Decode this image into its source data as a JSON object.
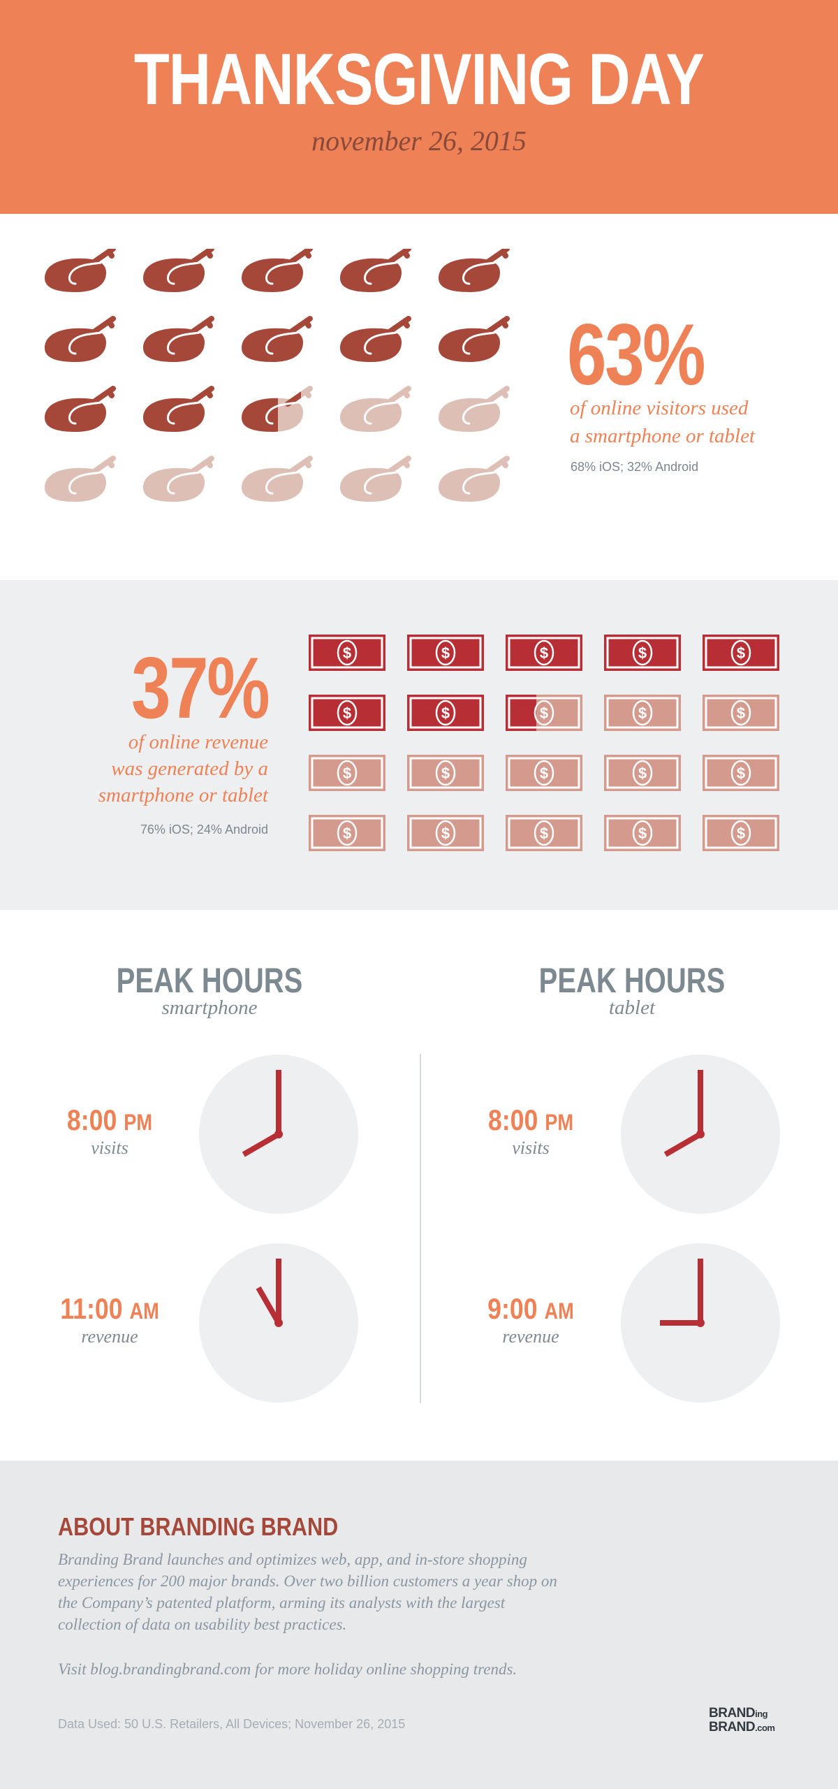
{
  "header": {
    "title": "THANKSGIVING DAY",
    "date": "november 26, 2015"
  },
  "visitors": {
    "percent": "63%",
    "description_line1": "of online visitors used",
    "description_line2": "a smartphone or tablet",
    "split": "68% iOS; 32% Android",
    "icon": "turkey-icon",
    "filled_fraction": 0.63,
    "colors": {
      "filled": "#a5483a",
      "empty": "#ddbfb5"
    }
  },
  "revenue": {
    "percent": "37%",
    "description_line1": "of online revenue",
    "description_line2": "was generated by a",
    "description_line3": "smartphone or tablet",
    "split": "76% iOS; 24% Android",
    "icon": "dollar-bill-icon",
    "filled_fraction": 0.37,
    "colors": {
      "filled": "#b72e35",
      "empty": "#d39a8d"
    }
  },
  "peak_hours": [
    {
      "title": "PEAK HOURS",
      "device": "smartphone",
      "entries": [
        {
          "time": "8:00",
          "ampm": "PM",
          "label": "visits",
          "hour": 8,
          "minute": 0
        },
        {
          "time": "11:00",
          "ampm": "AM",
          "label": "revenue",
          "hour": 11,
          "minute": 0
        }
      ]
    },
    {
      "title": "PEAK HOURS",
      "device": "tablet",
      "entries": [
        {
          "time": "8:00",
          "ampm": "PM",
          "label": "visits",
          "hour": 8,
          "minute": 0
        },
        {
          "time": "9:00",
          "ampm": "AM",
          "label": "revenue",
          "hour": 9,
          "minute": 0
        }
      ]
    }
  ],
  "about": {
    "title": "ABOUT BRANDING BRAND",
    "body_lines": [
      "Branding Brand launches and optimizes web, app, and in-store shopping",
      "experiences for 200 major brands. Over two billion customers a year shop on",
      "the Company’s patented platform, arming its analysts with the largest",
      "collection of data on usability best practices."
    ],
    "visit": "Visit blog.brandingbrand.com for more holiday online shopping trends.",
    "data_used": "Data Used: 50 U.S. Retailers, All Devices; November 26, 2015",
    "logo_line1_a": "BRAND",
    "logo_line1_b": "ing",
    "logo_line2_a": "BRAND",
    "logo_line2_b": ".com"
  },
  "colors": {
    "orange": "#ee8155",
    "clock_face": "#eeeff1",
    "clock_hand": "#b72e35",
    "gray_text": "#7d8990"
  }
}
